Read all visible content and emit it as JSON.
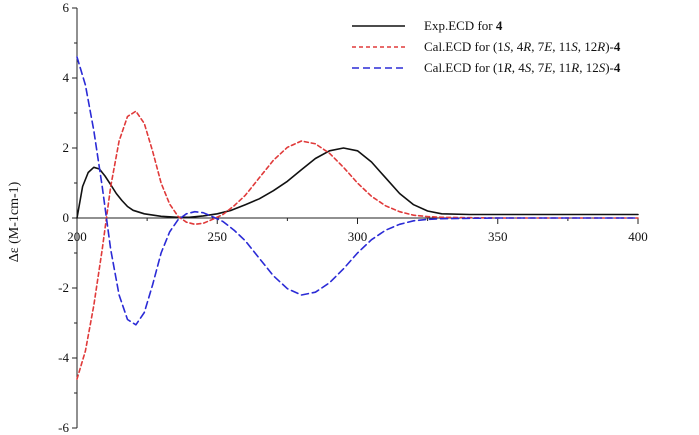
{
  "chart_data": {
    "type": "line",
    "title": "",
    "xlabel": "",
    "ylabel": "Δε (M-1cm-1)",
    "xlim": [
      200,
      400
    ],
    "ylim": [
      -6,
      6
    ],
    "xticks": [
      200,
      250,
      300,
      350,
      400
    ],
    "yticks": [
      -6,
      -4,
      -2,
      0,
      2,
      4,
      6
    ],
    "grid": false,
    "legend_position": "top-right",
    "series": [
      {
        "name_parts": [
          {
            "text": "Exp.ECD for ",
            "style": "normal"
          },
          {
            "text": "4",
            "style": "bold"
          }
        ],
        "color": "#111111",
        "dash": "solid",
        "x": [
          200,
          202,
          204,
          206,
          208,
          210,
          212,
          214,
          216,
          218,
          220,
          224,
          230,
          236,
          240,
          245,
          250,
          255,
          260,
          265,
          270,
          275,
          280,
          285,
          290,
          295,
          300,
          305,
          310,
          315,
          320,
          325,
          330,
          340,
          350,
          360,
          380,
          400
        ],
        "y": [
          0,
          0.9,
          1.3,
          1.45,
          1.4,
          1.2,
          0.95,
          0.7,
          0.5,
          0.33,
          0.22,
          0.12,
          0.05,
          0.02,
          0.02,
          0.06,
          0.12,
          0.22,
          0.38,
          0.55,
          0.78,
          1.05,
          1.38,
          1.7,
          1.92,
          2.0,
          1.92,
          1.6,
          1.15,
          0.7,
          0.38,
          0.2,
          0.12,
          0.1,
          0.1,
          0.1,
          0.1,
          0.1
        ]
      },
      {
        "name_parts": [
          {
            "text": "Cal.ECD for (1",
            "style": "normal"
          },
          {
            "text": "S",
            "style": "italic"
          },
          {
            "text": ", 4",
            "style": "normal"
          },
          {
            "text": "R",
            "style": "italic"
          },
          {
            "text": ", 7",
            "style": "normal"
          },
          {
            "text": "E",
            "style": "italic"
          },
          {
            "text": ", 11",
            "style": "normal"
          },
          {
            "text": "S",
            "style": "italic"
          },
          {
            "text": ", 12",
            "style": "normal"
          },
          {
            "text": "R",
            "style": "italic"
          },
          {
            "text": ")-",
            "style": "normal"
          },
          {
            "text": "4",
            "style": "bold"
          }
        ],
        "color": "#e03a3a",
        "dash": "short",
        "x": [
          200,
          203,
          206,
          209,
          212,
          215,
          218,
          221,
          224,
          227,
          230,
          233,
          236,
          239,
          242,
          245,
          248,
          252,
          256,
          260,
          265,
          270,
          275,
          280,
          285,
          290,
          295,
          300,
          305,
          310,
          315,
          320,
          325,
          330,
          340,
          350,
          400
        ],
        "y": [
          -4.6,
          -3.8,
          -2.5,
          -0.9,
          0.9,
          2.2,
          2.9,
          3.05,
          2.7,
          1.9,
          1.0,
          0.4,
          0.05,
          -0.12,
          -0.18,
          -0.15,
          -0.05,
          0.1,
          0.35,
          0.65,
          1.15,
          1.65,
          2.02,
          2.2,
          2.12,
          1.85,
          1.45,
          1.0,
          0.62,
          0.35,
          0.18,
          0.08,
          0.04,
          0.02,
          0.01,
          0,
          0
        ]
      },
      {
        "name_parts": [
          {
            "text": "Cal.ECD for (1",
            "style": "normal"
          },
          {
            "text": "R",
            "style": "italic"
          },
          {
            "text": ", 4",
            "style": "normal"
          },
          {
            "text": "S",
            "style": "italic"
          },
          {
            "text": ", 7",
            "style": "normal"
          },
          {
            "text": "E",
            "style": "italic"
          },
          {
            "text": ", 11",
            "style": "normal"
          },
          {
            "text": "R",
            "style": "italic"
          },
          {
            "text": ", 12",
            "style": "normal"
          },
          {
            "text": "S",
            "style": "italic"
          },
          {
            "text": ")-",
            "style": "normal"
          },
          {
            "text": "4",
            "style": "bold"
          }
        ],
        "color": "#2b2bd6",
        "dash": "long",
        "x": [
          200,
          203,
          206,
          209,
          212,
          215,
          218,
          221,
          224,
          227,
          230,
          233,
          236,
          239,
          242,
          245,
          248,
          252,
          256,
          260,
          265,
          270,
          275,
          280,
          285,
          290,
          295,
          300,
          305,
          310,
          315,
          320,
          325,
          330,
          340,
          350,
          400
        ],
        "y": [
          4.6,
          3.8,
          2.5,
          0.9,
          -0.9,
          -2.2,
          -2.9,
          -3.05,
          -2.7,
          -1.9,
          -1.0,
          -0.4,
          -0.05,
          0.12,
          0.18,
          0.15,
          0.05,
          -0.1,
          -0.35,
          -0.65,
          -1.15,
          -1.65,
          -2.02,
          -2.2,
          -2.12,
          -1.85,
          -1.45,
          -1.0,
          -0.62,
          -0.35,
          -0.18,
          -0.08,
          -0.04,
          -0.02,
          -0.01,
          0,
          0
        ]
      }
    ]
  }
}
